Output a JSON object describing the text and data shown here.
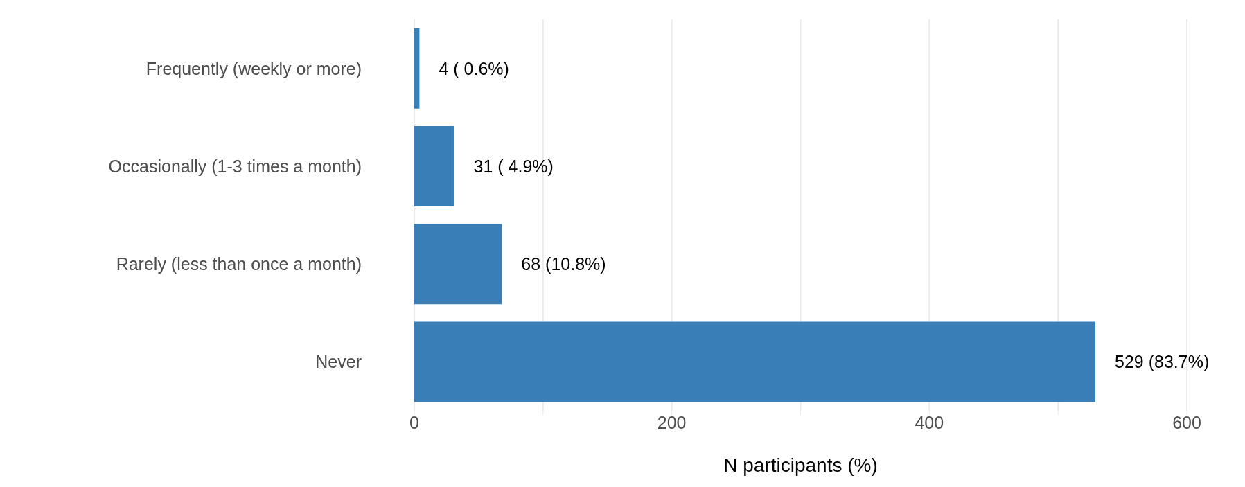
{
  "chart_data": {
    "type": "bar",
    "orientation": "horizontal",
    "xlabel": "N participants (%)",
    "categories": [
      "Frequently (weekly or more)",
      "Occasionally (1-3 times a month)",
      "Rarely (less than once a month)",
      "Never"
    ],
    "values": [
      4,
      31,
      68,
      529
    ],
    "value_labels": [
      "4 ( 0.6%)",
      "31 ( 4.9%)",
      "68 (10.8%)",
      "529 (83.7%)"
    ],
    "color": "#3a7eb8",
    "xlim": [
      0,
      600
    ],
    "xticks": [
      0,
      {
        "value": 100,
        "label": null
      },
      200,
      {
        "value": 300,
        "label": null
      },
      400,
      {
        "value": 500,
        "label": null
      },
      600
    ],
    "grid": "x"
  }
}
